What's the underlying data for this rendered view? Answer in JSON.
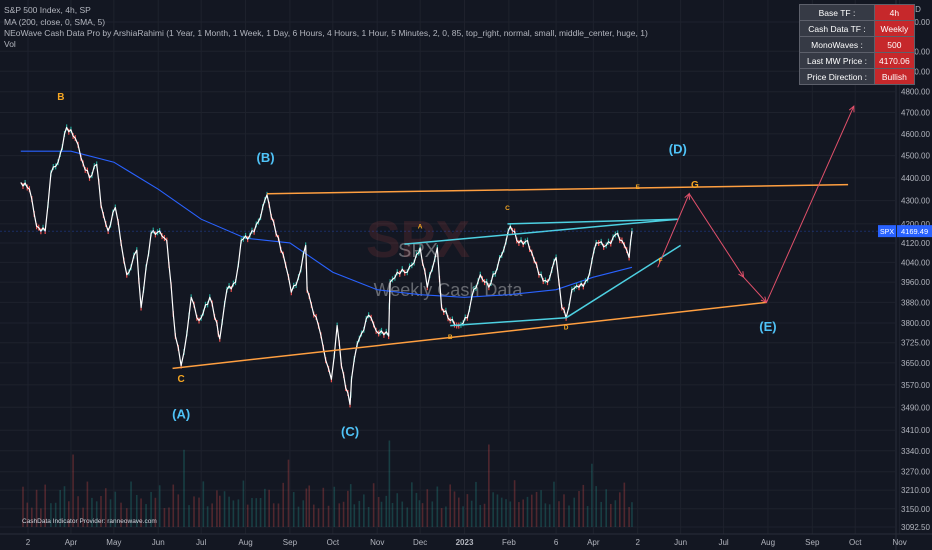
{
  "header": {
    "symbol_line": "S&P 500 Index, 4h, SP",
    "ma_line": "MA (200, close, 0, SMA, 5)",
    "indicator_line": "NEoWave Cash Data Pro by ArshiaRahimi (1 Year, 1 Month, 1 Week, 1 Day, 6 Hours, 4 Hours, 1 Hour, 5 Minutes, 2, 0, 85, top_right, normal, small, middle_center, huge, 1)",
    "vol_line": "Vol"
  },
  "table": [
    {
      "key": "Base TF :",
      "value": "4h"
    },
    {
      "key": "Cash Data TF :",
      "value": "Weekly"
    },
    {
      "key": "MonoWaves :",
      "value": "500"
    },
    {
      "key": "Last MW Price :",
      "value": "4170.06"
    },
    {
      "key": "Price Direction :",
      "value": "Bullish"
    }
  ],
  "footer": {
    "provider": "CashData Indicator Provider: ranneowave.com"
  },
  "colors": {
    "background": "#131722",
    "price_line": "#ffffff",
    "ma_line": "#2962ff",
    "triangle_line": "#ff9f40",
    "inner_line": "#4dd0e1",
    "projection": "#e0506a",
    "wave_orange": "#f5a623",
    "wave_cyan": "#4fc3f7",
    "candle_up": "#26a69a",
    "candle_down": "#ef5350",
    "current_price_bg": "#2962ff"
  },
  "chart_data": {
    "type": "line",
    "title": "S&P 500 Index, 4h, SP",
    "watermark": {
      "symbol": "SPX",
      "subtitle": "Weekly Cash Data"
    },
    "y_axis": {
      "unit_label": "USD",
      "ticks": [
        5150,
        5000,
        4900,
        4800,
        4700,
        4600,
        4500,
        4400,
        4300,
        4200,
        4120,
        4040,
        3960,
        3880,
        3800,
        3725,
        3650,
        3570,
        3490,
        3410,
        3340,
        3270,
        3210,
        3150,
        3092.5
      ],
      "tick_labels": [
        "5150.00",
        "5000.00",
        "4900.00",
        "4800.00",
        "4700.00",
        "4600.00",
        "4500.00",
        "4400.00",
        "4300.00",
        "4200.00",
        "4120.00",
        "4040.00",
        "3960.00",
        "3880.00",
        "3800.00",
        "3725.00",
        "3650.00",
        "3570.00",
        "3490.00",
        "3410.00",
        "3340.00",
        "3270.00",
        "3210.00",
        "3150.00",
        "3092.50"
      ],
      "log_scale": true
    },
    "x_axis": {
      "tick_labels": [
        "2",
        "Apr",
        "May",
        "Jun",
        "Jul",
        "Aug",
        "Sep",
        "Oct",
        "Nov",
        "Dec",
        "2023",
        "Feb",
        "6",
        "Apr",
        "2",
        "Jun",
        "Jul",
        "Aug",
        "Sep",
        "Oct",
        "Nov"
      ],
      "tick_dates": [
        "2022-03-02",
        "2022-04-01",
        "2022-05-01",
        "2022-06-01",
        "2022-07-01",
        "2022-08-01",
        "2022-09-01",
        "2022-10-01",
        "2022-11-01",
        "2022-12-01",
        "2023-01-01",
        "2023-02-01",
        "2023-03-06",
        "2023-04-01",
        "2023-05-02",
        "2023-06-01",
        "2023-07-01",
        "2023-08-01",
        "2023-09-01",
        "2023-10-01",
        "2023-11-01"
      ]
    },
    "current_price": {
      "label": "SPX",
      "value": "4169.49"
    },
    "price_series": [
      {
        "date": "2022-02-25",
        "price": 4380
      },
      {
        "date": "2022-03-03",
        "price": 4350
      },
      {
        "date": "2022-03-08",
        "price": 4190
      },
      {
        "date": "2022-03-14",
        "price": 4170
      },
      {
        "date": "2022-03-18",
        "price": 4420
      },
      {
        "date": "2022-03-23",
        "price": 4470
      },
      {
        "date": "2022-03-29",
        "price": 4630
      },
      {
        "date": "2022-04-04",
        "price": 4580
      },
      {
        "date": "2022-04-08",
        "price": 4490
      },
      {
        "date": "2022-04-14",
        "price": 4400
      },
      {
        "date": "2022-04-19",
        "price": 4460
      },
      {
        "date": "2022-04-22",
        "price": 4280
      },
      {
        "date": "2022-04-27",
        "price": 4170
      },
      {
        "date": "2022-05-02",
        "price": 4270
      },
      {
        "date": "2022-05-06",
        "price": 4120
      },
      {
        "date": "2022-05-10",
        "price": 3990
      },
      {
        "date": "2022-05-13",
        "price": 4020
      },
      {
        "date": "2022-05-17",
        "price": 4090
      },
      {
        "date": "2022-05-20",
        "price": 3860
      },
      {
        "date": "2022-05-27",
        "price": 4160
      },
      {
        "date": "2022-06-02",
        "price": 4170
      },
      {
        "date": "2022-06-07",
        "price": 4130
      },
      {
        "date": "2022-06-13",
        "price": 3750
      },
      {
        "date": "2022-06-17",
        "price": 3640
      },
      {
        "date": "2022-06-21",
        "price": 3760
      },
      {
        "date": "2022-06-24",
        "price": 3900
      },
      {
        "date": "2022-06-28",
        "price": 3820
      },
      {
        "date": "2022-07-01",
        "price": 3820
      },
      {
        "date": "2022-07-07",
        "price": 3900
      },
      {
        "date": "2022-07-12",
        "price": 3800
      },
      {
        "date": "2022-07-14",
        "price": 3740
      },
      {
        "date": "2022-07-19",
        "price": 3930
      },
      {
        "date": "2022-07-25",
        "price": 3960
      },
      {
        "date": "2022-07-29",
        "price": 4130
      },
      {
        "date": "2022-08-04",
        "price": 4150
      },
      {
        "date": "2022-08-10",
        "price": 4210
      },
      {
        "date": "2022-08-16",
        "price": 4325
      },
      {
        "date": "2022-08-19",
        "price": 4230
      },
      {
        "date": "2022-08-24",
        "price": 4140
      },
      {
        "date": "2022-08-29",
        "price": 4030
      },
      {
        "date": "2022-09-02",
        "price": 3920
      },
      {
        "date": "2022-09-07",
        "price": 3980
      },
      {
        "date": "2022-09-12",
        "price": 4110
      },
      {
        "date": "2022-09-13",
        "price": 3930
      },
      {
        "date": "2022-09-16",
        "price": 3870
      },
      {
        "date": "2022-09-21",
        "price": 3790
      },
      {
        "date": "2022-09-26",
        "price": 3660
      },
      {
        "date": "2022-09-30",
        "price": 3590
      },
      {
        "date": "2022-10-04",
        "price": 3790
      },
      {
        "date": "2022-10-07",
        "price": 3640
      },
      {
        "date": "2022-10-13",
        "price": 3500
      },
      {
        "date": "2022-10-14",
        "price": 3590
      },
      {
        "date": "2022-10-18",
        "price": 3720
      },
      {
        "date": "2022-10-21",
        "price": 3760
      },
      {
        "date": "2022-10-26",
        "price": 3830
      },
      {
        "date": "2022-11-02",
        "price": 3760
      },
      {
        "date": "2022-11-04",
        "price": 3770
      },
      {
        "date": "2022-11-09",
        "price": 3750
      },
      {
        "date": "2022-11-10",
        "price": 3960
      },
      {
        "date": "2022-11-15",
        "price": 4000
      },
      {
        "date": "2022-11-22",
        "price": 4000
      },
      {
        "date": "2022-11-30",
        "price": 4080
      },
      {
        "date": "2022-12-01",
        "price": 4100
      },
      {
        "date": "2022-12-06",
        "price": 3940
      },
      {
        "date": "2022-12-13",
        "price": 4100
      },
      {
        "date": "2022-12-16",
        "price": 3860
      },
      {
        "date": "2022-12-22",
        "price": 3810
      },
      {
        "date": "2022-12-28",
        "price": 3790
      },
      {
        "date": "2023-01-03",
        "price": 3820
      },
      {
        "date": "2023-01-06",
        "price": 3900
      },
      {
        "date": "2023-01-12",
        "price": 3990
      },
      {
        "date": "2023-01-18",
        "price": 3940
      },
      {
        "date": "2023-01-24",
        "price": 4020
      },
      {
        "date": "2023-01-27",
        "price": 4070
      },
      {
        "date": "2023-02-02",
        "price": 4190
      },
      {
        "date": "2023-02-08",
        "price": 4120
      },
      {
        "date": "2023-02-14",
        "price": 4130
      },
      {
        "date": "2023-02-17",
        "price": 4080
      },
      {
        "date": "2023-02-22",
        "price": 3990
      },
      {
        "date": "2023-02-28",
        "price": 3960
      },
      {
        "date": "2023-03-06",
        "price": 4060
      },
      {
        "date": "2023-03-10",
        "price": 3860
      },
      {
        "date": "2023-03-13",
        "price": 3820
      },
      {
        "date": "2023-03-17",
        "price": 3930
      },
      {
        "date": "2023-03-22",
        "price": 3940
      },
      {
        "date": "2023-03-28",
        "price": 3970
      },
      {
        "date": "2023-04-03",
        "price": 4120
      },
      {
        "date": "2023-04-10",
        "price": 4110
      },
      {
        "date": "2023-04-18",
        "price": 4160
      },
      {
        "date": "2023-04-21",
        "price": 4130
      },
      {
        "date": "2023-04-26",
        "price": 4060
      },
      {
        "date": "2023-04-28",
        "price": 4170
      }
    ],
    "ma_series": [
      {
        "date": "2022-02-25",
        "price": 4520
      },
      {
        "date": "2022-04-01",
        "price": 4520
      },
      {
        "date": "2022-05-01",
        "price": 4470
      },
      {
        "date": "2022-06-01",
        "price": 4350
      },
      {
        "date": "2022-07-01",
        "price": 4220
      },
      {
        "date": "2022-08-01",
        "price": 4140
      },
      {
        "date": "2022-09-01",
        "price": 4120
      },
      {
        "date": "2022-10-01",
        "price": 4000
      },
      {
        "date": "2022-11-01",
        "price": 3930
      },
      {
        "date": "2022-12-01",
        "price": 3910
      },
      {
        "date": "2023-01-01",
        "price": 3900
      },
      {
        "date": "2023-02-01",
        "price": 3910
      },
      {
        "date": "2023-03-06",
        "price": 3930
      },
      {
        "date": "2023-04-01",
        "price": 3980
      },
      {
        "date": "2023-04-28",
        "price": 4020
      }
    ],
    "trendlines": [
      {
        "name": "triangle-upper",
        "color": "#ff9f40",
        "from": {
          "date": "2022-08-16",
          "price": 4330
        },
        "to": {
          "date": "2023-09-26",
          "price": 4370
        }
      },
      {
        "name": "triangle-lower",
        "color": "#ff9f40",
        "from": {
          "date": "2022-06-11",
          "price": 3630
        },
        "to": {
          "date": "2023-07-31",
          "price": 3880
        }
      },
      {
        "name": "inner-upper",
        "color": "#4dd0e1",
        "from": {
          "date": "2022-11-20",
          "price": 4115
        },
        "to": {
          "date": "2023-05-30",
          "price": 4220
        }
      },
      {
        "name": "inner-mid",
        "color": "#4dd0e1",
        "from": {
          "date": "2023-01-31",
          "price": 4200
        },
        "to": {
          "date": "2023-05-30",
          "price": 4220
        }
      },
      {
        "name": "inner-lower",
        "color": "#4dd0e1",
        "from": {
          "date": "2022-12-22",
          "price": 3790
        },
        "to": {
          "date": "2023-03-13",
          "price": 3820
        }
      },
      {
        "name": "inner-diag",
        "color": "#4dd0e1",
        "from": {
          "date": "2023-03-13",
          "price": 3820
        },
        "to": {
          "date": "2023-06-01",
          "price": 4110
        }
      }
    ],
    "projection_path": [
      {
        "date": "2023-05-16",
        "price": 4020
      },
      {
        "date": "2023-06-07",
        "price": 4330
      },
      {
        "date": "2023-07-15",
        "price": 3980
      },
      {
        "date": "2023-07-31",
        "price": 3880
      },
      {
        "date": "2023-09-30",
        "price": 4730
      }
    ],
    "wave_labels": [
      {
        "text": "B",
        "date": "2022-03-25",
        "price": 4760,
        "color": "#f5a623",
        "size": "small"
      },
      {
        "text": "C",
        "date": "2022-06-17",
        "price": 3580,
        "color": "#f5a623",
        "size": "small"
      },
      {
        "text": "(A)",
        "date": "2022-06-17",
        "price": 3450,
        "color": "#4fc3f7",
        "size": "large"
      },
      {
        "text": "(B)",
        "date": "2022-08-15",
        "price": 4470,
        "color": "#4fc3f7",
        "size": "large"
      },
      {
        "text": "(C)",
        "date": "2022-10-13",
        "price": 3390,
        "color": "#4fc3f7",
        "size": "large"
      },
      {
        "text": "A",
        "date": "2022-12-01",
        "price": 4180,
        "color": "#f5a623",
        "size": "tiny"
      },
      {
        "text": "B",
        "date": "2022-12-22",
        "price": 3740,
        "color": "#f5a623",
        "size": "tiny"
      },
      {
        "text": "C",
        "date": "2023-01-31",
        "price": 4260,
        "color": "#f5a623",
        "size": "tiny"
      },
      {
        "text": "D",
        "date": "2023-03-13",
        "price": 3775,
        "color": "#f5a623",
        "size": "tiny"
      },
      {
        "text": "E",
        "date": "2023-05-02",
        "price": 4350,
        "color": "#f5a623",
        "size": "tiny"
      },
      {
        "text": "F",
        "date": "2023-05-18",
        "price": 4040,
        "color": "#f5a623",
        "size": "tiny"
      },
      {
        "text": "G",
        "date": "2023-06-11",
        "price": 4355,
        "color": "#f5a623",
        "size": "small"
      },
      {
        "text": "(D)",
        "date": "2023-05-30",
        "price": 4510,
        "color": "#4fc3f7",
        "size": "large"
      },
      {
        "text": "(E)",
        "date": "2023-08-01",
        "price": 3770,
        "color": "#4fc3f7",
        "size": "large"
      }
    ],
    "volume": {
      "visible": true
    }
  }
}
